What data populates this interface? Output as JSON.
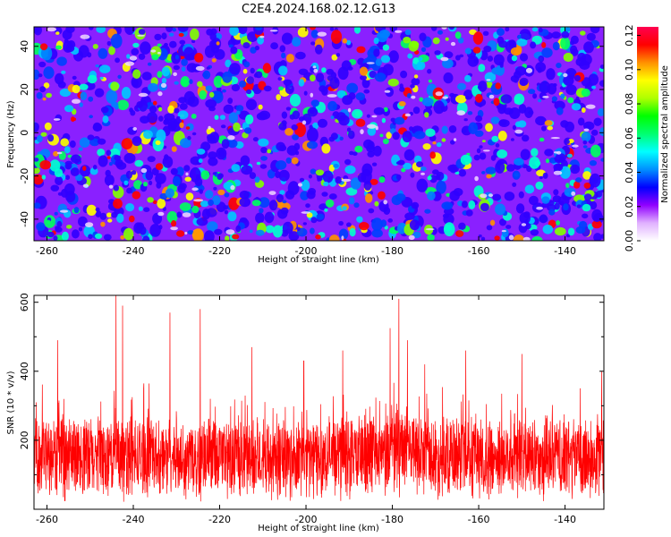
{
  "chart_data": [
    {
      "type": "heatmap",
      "title": "C2E4.2024.168.02.12.G13",
      "xlabel": "Height of straight line (km)",
      "ylabel": "Frequency (Hz)",
      "xlim": [
        -263,
        -131
      ],
      "ylim": [
        -50,
        49
      ],
      "xticks": [
        -260,
        -240,
        -220,
        -200,
        -180,
        -160,
        -140
      ],
      "yticks": [
        -40,
        -20,
        0,
        20,
        40
      ],
      "colorbar": {
        "label": "Normalized spectral amplitude",
        "range": [
          0.0,
          0.125
        ],
        "ticks": [
          "0.00",
          "0.02",
          "0.04",
          "0.06",
          "0.08",
          "0.10",
          "0.12"
        ],
        "colors": [
          "#ffffff",
          "#e0b0ff",
          "#9000ff",
          "#0000ff",
          "#0090ff",
          "#00ffff",
          "#00ff70",
          "#00ff00",
          "#b0ff00",
          "#ffff00",
          "#ff9000",
          "#ff0000",
          "#ff0050"
        ]
      },
      "values_note": "",
      "grid": false
    },
    {
      "type": "line",
      "xlabel": "Height of straight line (km)",
      "ylabel": "SNR (10 * v/v)",
      "xlim": [
        -263,
        -131
      ],
      "ylim": [
        0,
        620
      ],
      "xticks": [
        -260,
        -240,
        -220,
        -200,
        -180,
        -160,
        -140
      ],
      "yticks": [
        200,
        400,
        600
      ],
      "color": "#ff0000",
      "baseline_level": 150,
      "peaks": [
        {
          "x": -262.5,
          "y": 310
        },
        {
          "x": -257.5,
          "y": 490
        },
        {
          "x": -244.0,
          "y": 620
        },
        {
          "x": -242.5,
          "y": 590
        },
        {
          "x": -231.5,
          "y": 570
        },
        {
          "x": -224.5,
          "y": 580
        },
        {
          "x": -212.5,
          "y": 470
        },
        {
          "x": -200.5,
          "y": 430
        },
        {
          "x": -191.5,
          "y": 460
        },
        {
          "x": -180.5,
          "y": 525
        },
        {
          "x": -178.5,
          "y": 610
        },
        {
          "x": -176.5,
          "y": 490
        },
        {
          "x": -172.5,
          "y": 420
        },
        {
          "x": -163.0,
          "y": 460
        },
        {
          "x": -150.0,
          "y": 450
        },
        {
          "x": -131.5,
          "y": 400
        }
      ],
      "grid": false
    }
  ]
}
